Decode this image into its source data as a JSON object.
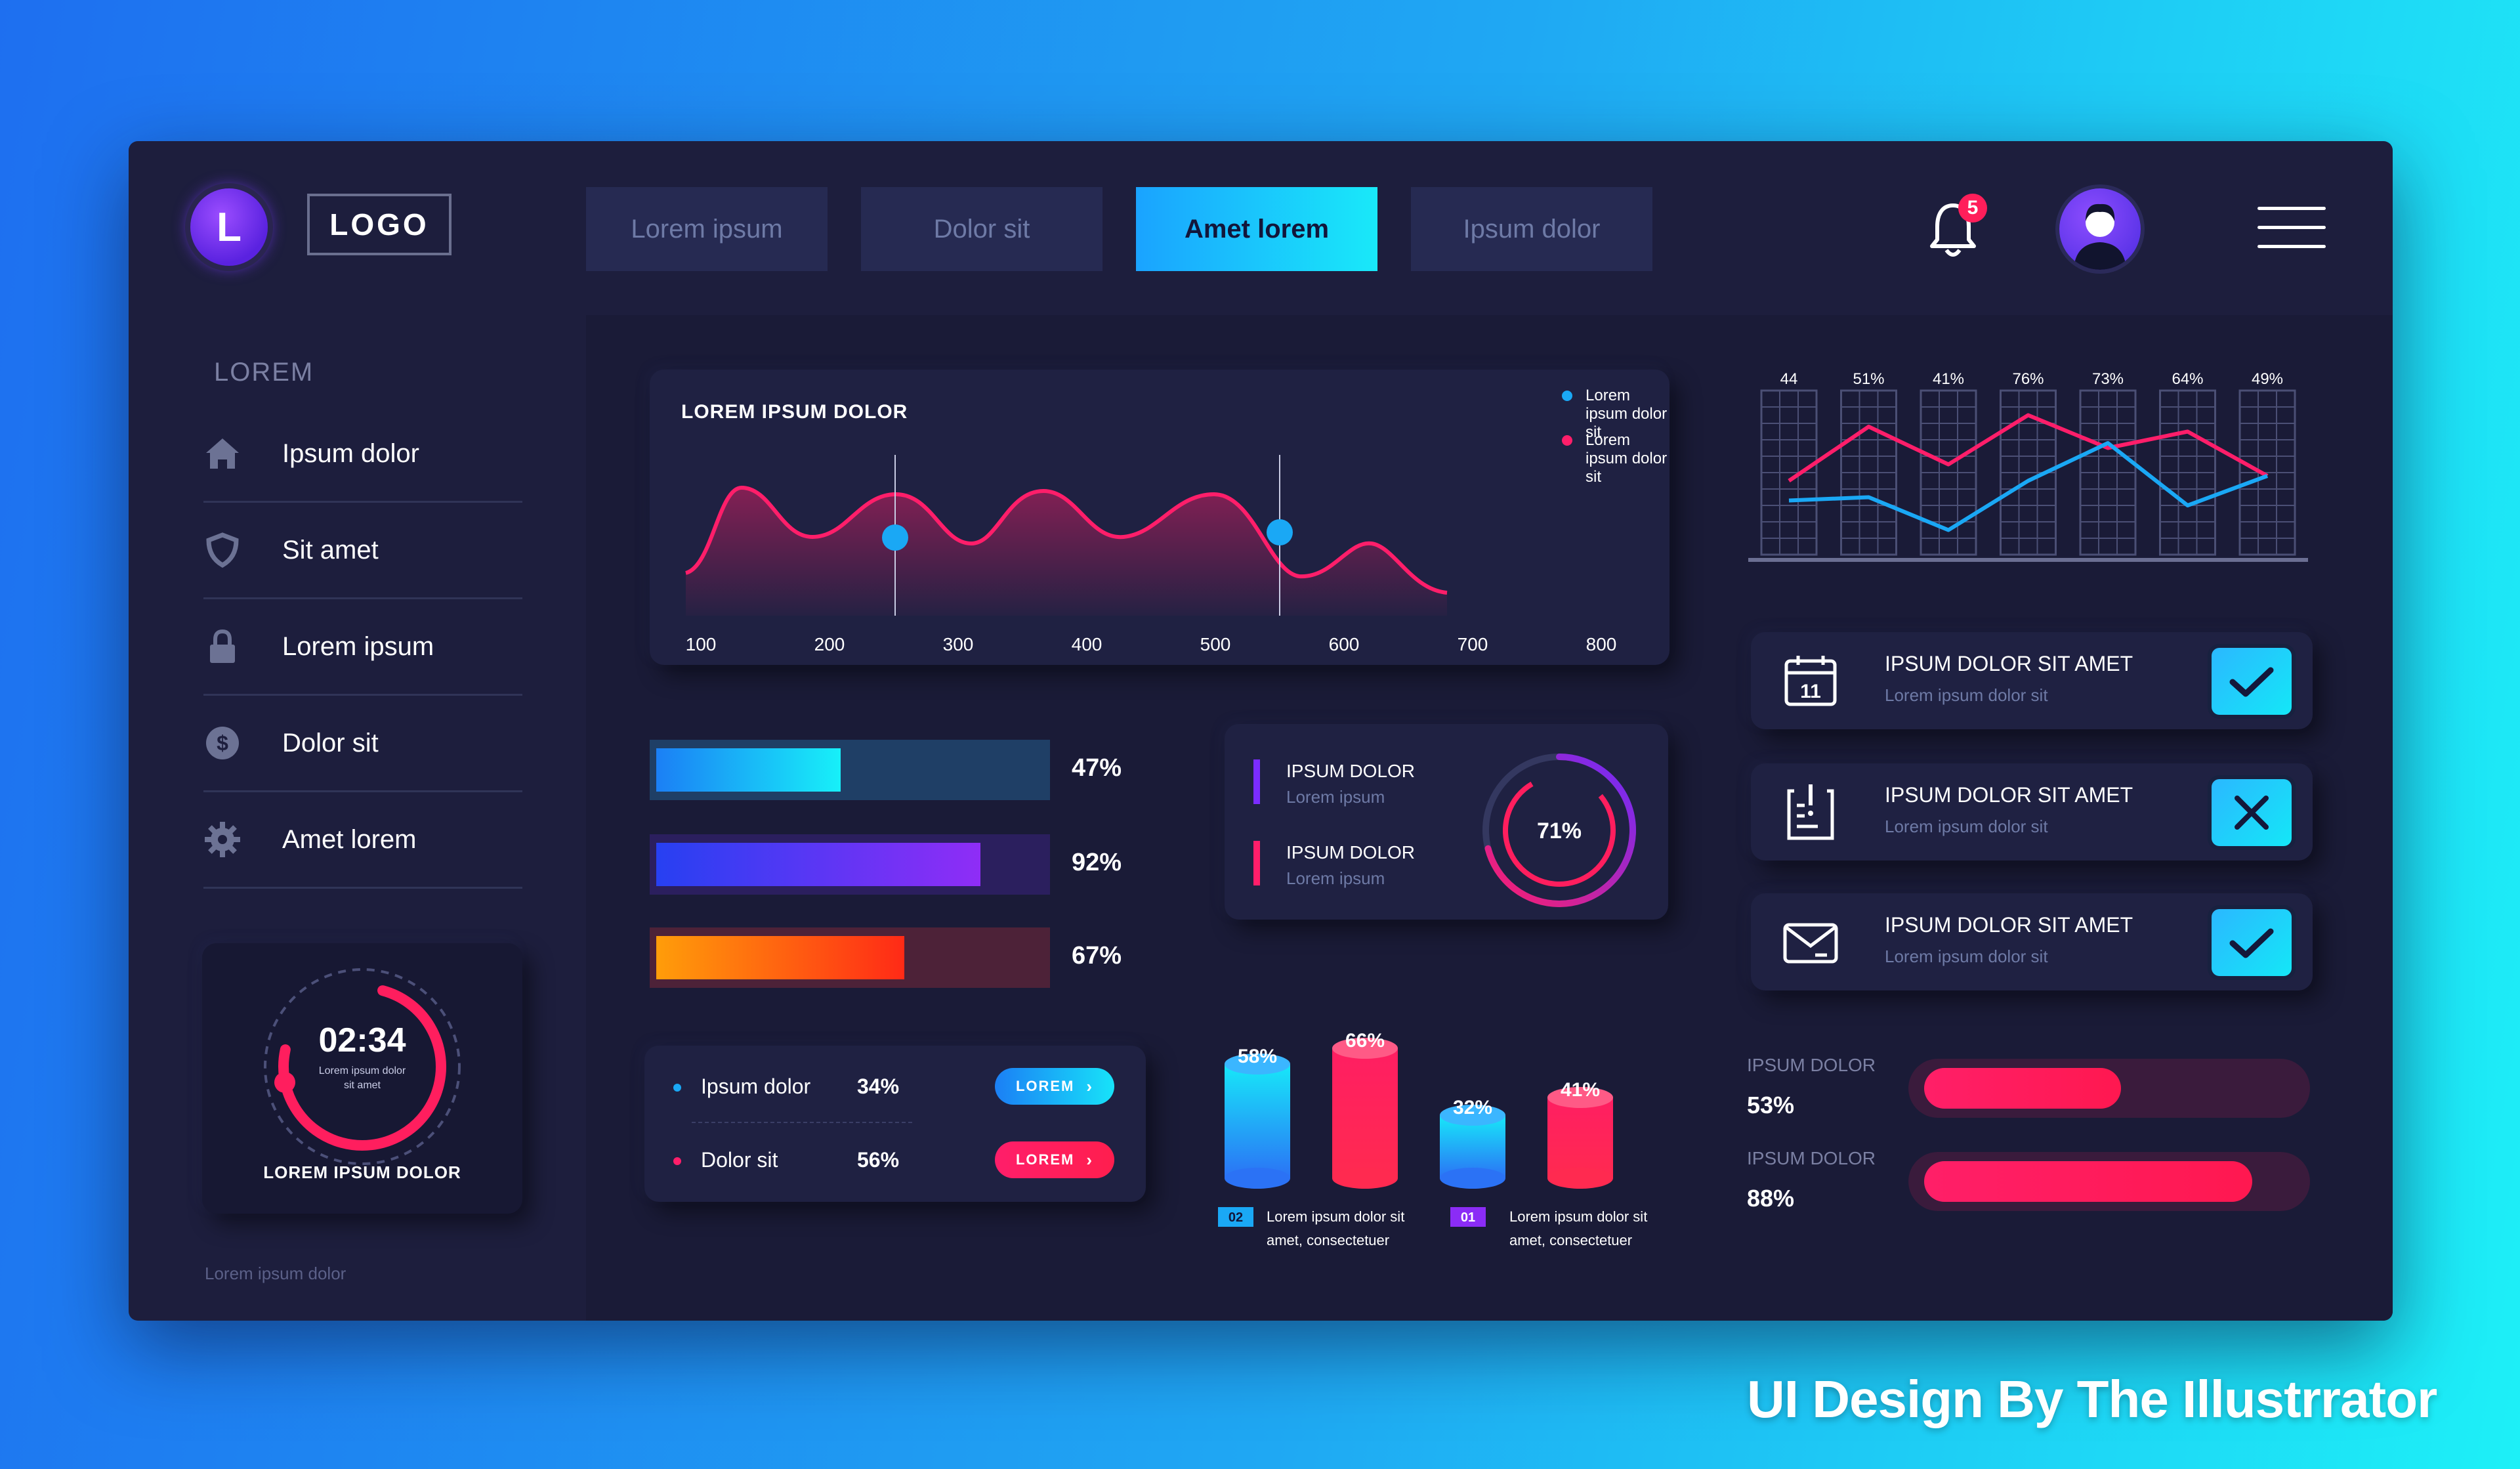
{
  "header": {
    "logo_letter": "L",
    "logo_text": "LOGO",
    "tabs": [
      {
        "label": "Lorem ipsum",
        "active": false
      },
      {
        "label": "Dolor sit",
        "active": false
      },
      {
        "label": "Amet lorem",
        "active": true
      },
      {
        "label": "Ipsum dolor",
        "active": false
      }
    ],
    "notification_count": "5"
  },
  "sidebar": {
    "section_title": "LOREM",
    "items": [
      {
        "label": "Ipsum dolor",
        "icon": "home-icon"
      },
      {
        "label": "Sit amet",
        "icon": "shield-icon"
      },
      {
        "label": "Lorem ipsum",
        "icon": "lock-icon"
      },
      {
        "label": "Dolor sit",
        "icon": "dollar-icon"
      },
      {
        "label": "Amet lorem",
        "icon": "gear-icon"
      }
    ],
    "timer": {
      "time": "02:34",
      "caption_line1": "Lorem ipsum dolor",
      "caption_line2": "sit amet",
      "title": "LOREM IPSUM DOLOR"
    },
    "footer": "Lorem ipsum dolor"
  },
  "wave_chart": {
    "title": "LOREM IPSUM DOLOR",
    "legend": [
      "Lorem ipsum dolor sit",
      "Lorem ipsum dolor sit"
    ],
    "colors": {
      "line": "#ff1e6a",
      "marker": "#1aa8f5",
      "legend_blue": "#1aa8f5",
      "legend_red": "#ff1e6a"
    }
  },
  "progress_bars": [
    {
      "percent": 47,
      "label": "47%"
    },
    {
      "percent": 92,
      "label": "92%"
    },
    {
      "percent": 67,
      "label": "67%"
    }
  ],
  "stats": [
    {
      "label": "Ipsum dolor",
      "value": "34%",
      "button": "LOREM",
      "dot": "#1aa8f5"
    },
    {
      "label": "Dolor sit",
      "value": "56%",
      "button": "LOREM",
      "dot": "#ff1e6a"
    }
  ],
  "donut": {
    "value": 71,
    "label": "71%",
    "items": [
      {
        "title": "IPSUM DOLOR",
        "sub": "Lorem ipsum",
        "color": "#7b2cff"
      },
      {
        "title": "IPSUM DOLOR",
        "sub": "Lorem ipsum",
        "color": "#ff1e6a"
      }
    ]
  },
  "cylinders": {
    "items": [
      {
        "label": "58%",
        "value": 58,
        "color": "blue"
      },
      {
        "label": "66%",
        "value": 66,
        "color": "red"
      },
      {
        "label": "32%",
        "value": 32,
        "color": "blue"
      },
      {
        "label": "41%",
        "value": 41,
        "color": "red"
      }
    ],
    "notes": [
      {
        "badge": "02",
        "line1": "Lorem ipsum dolor sit",
        "line2": "amet, consectetuer"
      },
      {
        "badge": "01",
        "line1": "Lorem ipsum dolor sit",
        "line2": "amet, consectetuer"
      }
    ]
  },
  "chart_data": {
    "type": "line",
    "categories": [
      "44",
      "51%",
      "41%",
      "76%",
      "73%",
      "64%",
      "49%"
    ],
    "series": [
      {
        "values": [
          45,
          78,
          55,
          85,
          65,
          75,
          48
        ]
      },
      {
        "values": [
          33,
          35,
          15,
          45,
          68,
          30,
          48
        ]
      }
    ],
    "colors": [
      "#ff1e6a",
      "#1aa8f5"
    ],
    "grid": true
  },
  "tasks": [
    {
      "title": "IPSUM DOLOR SIT AMET",
      "sub": "Lorem ipsum dolor sit",
      "icon": "calendar-icon",
      "state": "check"
    },
    {
      "title": "IPSUM DOLOR SIT AMET",
      "sub": "Lorem ipsum dolor sit",
      "icon": "clipboard-icon",
      "state": "cross"
    },
    {
      "title": "IPSUM DOLOR SIT AMET",
      "sub": "Lorem ipsum dolor sit",
      "icon": "mail-icon",
      "state": "check"
    }
  ],
  "bottom_bars": [
    {
      "label": "IPSUM DOLOR",
      "value": "53%",
      "percent": 53
    },
    {
      "label": "IPSUM DOLOR",
      "value": "88%",
      "percent": 88
    }
  ],
  "watermark": "UI Design By The Illustrrator"
}
